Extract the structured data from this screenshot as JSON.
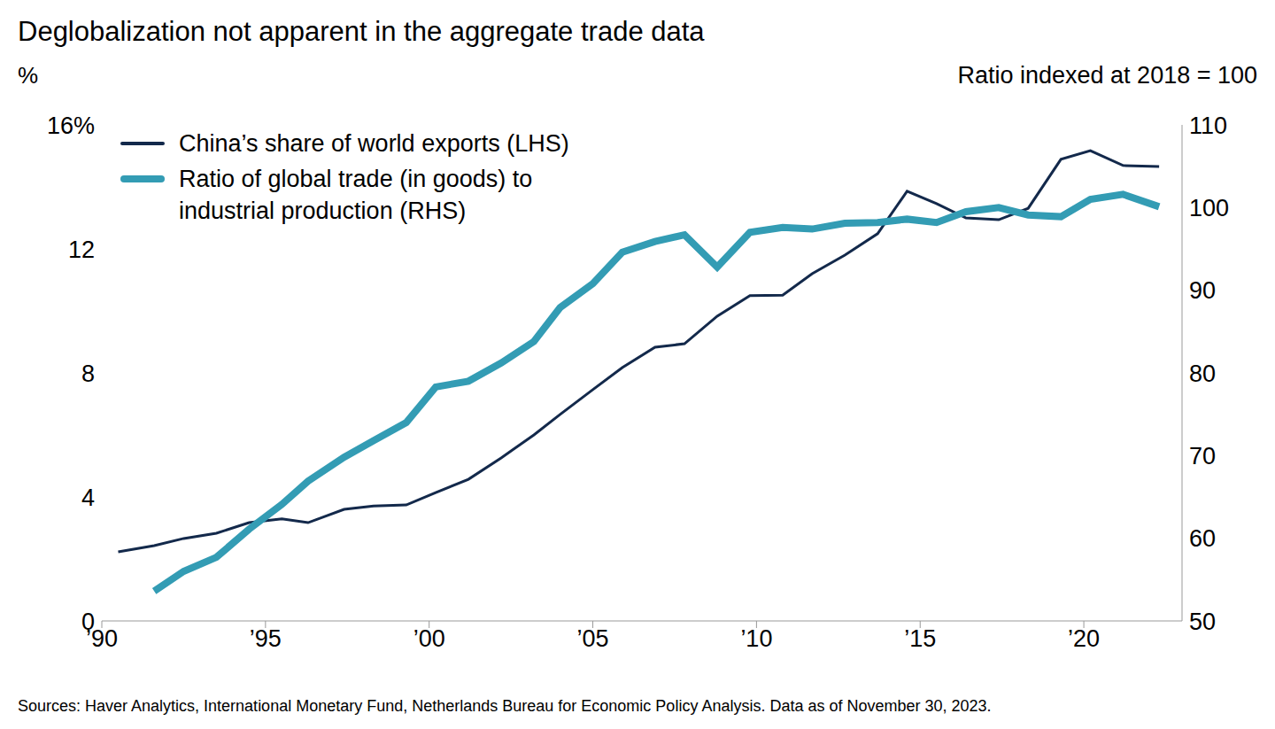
{
  "chart_data": {
    "type": "line",
    "title": "Deglobalization not apparent in the aggregate trade data",
    "ylabel": "%",
    "y2label": "Ratio indexed at 2018 = 100",
    "source": "Sources: Haver Analytics, International Monetary Fund, Netherlands Bureau for Economic Policy Analysis. Data as of November 30, 2023.",
    "x": [
      1990.5,
      1991.6,
      1992.5,
      1993.5,
      1994.5,
      1995.5,
      1996.3,
      1997.4,
      1998.3,
      1999.3,
      2000.2,
      2001.2,
      2002.2,
      2003.2,
      2004.0,
      2005.0,
      2005.9,
      2006.9,
      2007.8,
      2008.8,
      2009.8,
      2010.8,
      2011.7,
      2012.7,
      2013.7,
      2014.6,
      2015.5,
      2016.4,
      2017.4,
      2018.3,
      2019.3,
      2020.2,
      2021.2,
      2022.3
    ],
    "series": [
      {
        "name": "China’s share of world exports (LHS)",
        "color": "#13294b",
        "axis": "y",
        "values": [
          2.23,
          2.43,
          2.66,
          2.83,
          3.17,
          3.29,
          3.17,
          3.6,
          3.71,
          3.74,
          4.14,
          4.57,
          5.26,
          6.0,
          6.66,
          7.46,
          8.17,
          8.83,
          8.94,
          9.83,
          10.49,
          10.51,
          11.2,
          11.8,
          12.49,
          13.86,
          13.46,
          13.0,
          12.94,
          13.31,
          14.89,
          15.17,
          14.69,
          14.66
        ]
      },
      {
        "name": "Ratio of global trade (in goods) to industrial production (RHS)",
        "color": "#339cb4",
        "axis": "y2",
        "values": [
          null,
          53.6,
          56.0,
          57.7,
          61.1,
          64.1,
          66.9,
          69.8,
          71.8,
          74.0,
          78.3,
          79.0,
          81.2,
          83.8,
          87.9,
          90.8,
          94.6,
          95.9,
          96.7,
          92.8,
          97.0,
          97.6,
          97.4,
          98.1,
          98.2,
          98.6,
          98.2,
          99.5,
          100.0,
          99.1,
          98.9,
          101.0,
          101.6,
          100.1
        ]
      }
    ],
    "xlim": [
      1990,
      2023
    ],
    "xticks": [
      {
        "value": 1990,
        "label": "’90"
      },
      {
        "value": 1995,
        "label": "’95"
      },
      {
        "value": 2000,
        "label": "’00"
      },
      {
        "value": 2005,
        "label": "’05"
      },
      {
        "value": 2010,
        "label": "’10"
      },
      {
        "value": 2015,
        "label": "’15"
      },
      {
        "value": 2020,
        "label": "’20"
      }
    ],
    "ylim": [
      0,
      16
    ],
    "yticks": [
      0,
      4,
      8,
      12,
      {
        "value": 16,
        "label": "16%"
      }
    ],
    "y2lim": [
      50,
      110
    ],
    "y2ticks": [
      50,
      60,
      70,
      80,
      90,
      100,
      110
    ],
    "grid": false,
    "legend": "top-left"
  }
}
